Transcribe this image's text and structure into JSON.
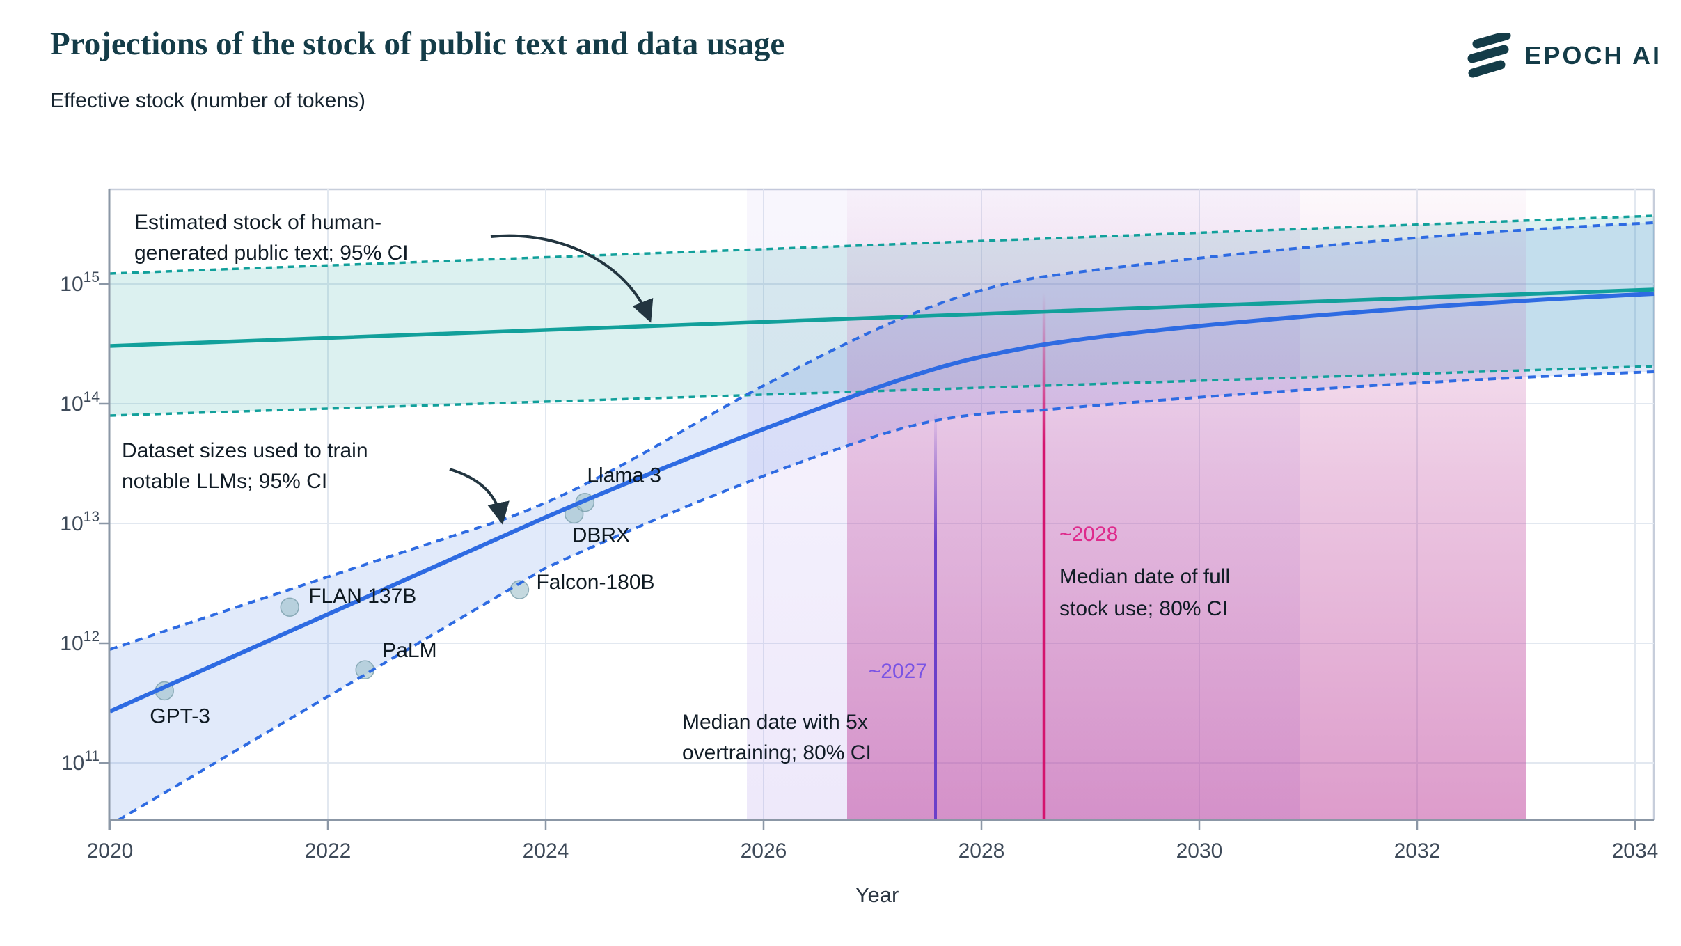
{
  "header": {
    "title": "Projections of the stock of public text and data usage",
    "subtitle": "Effective stock (number of tokens)",
    "brand": "EPOCH AI"
  },
  "colors": {
    "teal_line": "#12a09b",
    "blue_line": "#2e6be2",
    "purple_line": "#6b40c9",
    "purple_label": "#7a54e4",
    "pink_line": "#d4136e",
    "pink_label": "#de2b8c",
    "annotation_text": "#111c26",
    "arrow": "#223540",
    "title_text": "#143c48"
  },
  "annotations": {
    "human_stock": {
      "line1": "Estimated stock of human-",
      "line2": "generated public text; 95% CI"
    },
    "dataset_sizes": {
      "line1": "Dataset sizes used to train",
      "line2": "notable LLMs; 95% CI"
    },
    "overtraining": {
      "label": "~2027",
      "line1": "Median date with 5x",
      "line2": "overtraining; 80% CI"
    },
    "full_stock": {
      "label": "~2028",
      "line1": "Median date of full",
      "line2": "stock use; 80% CI"
    }
  },
  "chart_data": {
    "type": "line",
    "title": "Projections of the stock of public text and data usage",
    "ylabel": "Effective stock (number of tokens)",
    "xlabel": "Year",
    "x_ticks": [
      2020,
      2022,
      2024,
      2026,
      2028,
      2030,
      2032,
      2034
    ],
    "y_tick_exponents": [
      15,
      14,
      13,
      12,
      11
    ],
    "x_range": [
      2020,
      2034.2
    ],
    "y_log_range": [
      10.52,
      15.79
    ],
    "grid": true,
    "series": [
      {
        "name": "Stock of human-generated public text (median)",
        "style": "solid-teal",
        "points_year_log10tokens": [
          [
            2020,
            14.48
          ],
          [
            2027,
            14.72
          ],
          [
            2034,
            14.95
          ]
        ]
      },
      {
        "name": "Stock of human-generated public text (upper 95% CI)",
        "style": "dashed-teal",
        "points_year_log10tokens": [
          [
            2020,
            15.09
          ],
          [
            2034,
            15.57
          ]
        ]
      },
      {
        "name": "Stock of human-generated public text (lower 95% CI)",
        "style": "dashed-teal",
        "points_year_log10tokens": [
          [
            2020,
            13.9
          ],
          [
            2034,
            14.31
          ]
        ]
      },
      {
        "name": "Dataset sizes used to train notable LLMs (median)",
        "style": "solid-blue",
        "points_year_log10tokens": [
          [
            2020,
            11.43
          ],
          [
            2022,
            12.24
          ],
          [
            2024,
            13.05
          ],
          [
            2026,
            13.8
          ],
          [
            2028.5,
            14.48
          ],
          [
            2030,
            14.7
          ],
          [
            2032,
            14.83
          ],
          [
            2034,
            14.91
          ]
        ]
      },
      {
        "name": "Dataset sizes (upper 95% CI)",
        "style": "dashed-blue",
        "points_year_log10tokens": [
          [
            2020,
            11.95
          ],
          [
            2023.5,
            13.0
          ],
          [
            2026,
            14.15
          ],
          [
            2028.5,
            15.05
          ],
          [
            2030,
            15.25
          ],
          [
            2032,
            15.4
          ],
          [
            2034,
            15.5
          ]
        ]
      },
      {
        "name": "Dataset sizes (lower 95% CI)",
        "style": "dashed-blue",
        "points_year_log10tokens": [
          [
            2020.1,
            10.52
          ],
          [
            2022,
            11.55
          ],
          [
            2024,
            12.63
          ],
          [
            2027,
            13.72
          ],
          [
            2028.5,
            13.94
          ],
          [
            2030,
            14.08
          ],
          [
            2032,
            14.19
          ],
          [
            2034,
            14.27
          ]
        ]
      }
    ],
    "models": [
      {
        "name": "GPT-3",
        "year": 2020.5,
        "tokens": 400000000000.0
      },
      {
        "name": "FLAN 137B",
        "year": 2021.65,
        "tokens": 2000000000000.0
      },
      {
        "name": "PaLM",
        "year": 2022.34,
        "tokens": 600000000000.0
      },
      {
        "name": "Falcon-180B",
        "year": 2023.76,
        "tokens": 2800000000000.0
      },
      {
        "name": "DBRX",
        "year": 2024.26,
        "tokens": 12000000000000.0
      },
      {
        "name": "Llama 3",
        "year": 2024.36,
        "tokens": 15000000000000.0
      }
    ],
    "events": [
      {
        "label": "~2027",
        "description": "Median date with 5x overtraining; 80% CI",
        "median_year": 2027.6,
        "ci80_years": [
          2025.85,
          2030.9
        ]
      },
      {
        "label": "~2028",
        "description": "Median date of full stock use; 80% CI",
        "median_year": 2028.6,
        "ci80_years": [
          2026.8,
          2033.0
        ]
      }
    ],
    "legend_position": "annotated-in-plot"
  }
}
